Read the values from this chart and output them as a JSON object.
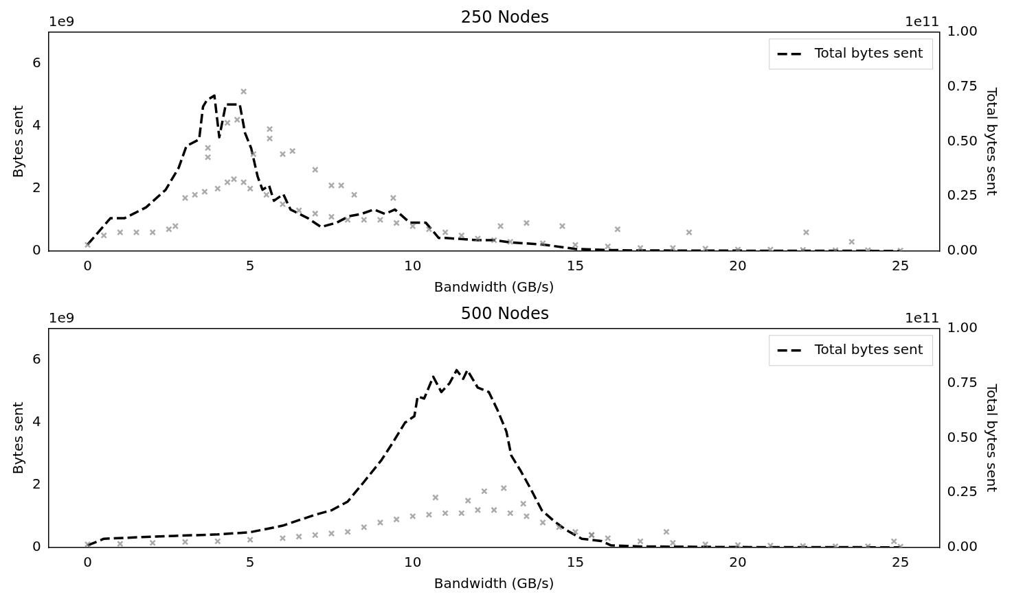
{
  "chart_data": [
    {
      "type": "scatter",
      "title": "250 Nodes",
      "xlabel": "Bandwidth (GB/s)",
      "ylabel": "Bytes sent",
      "y2label": "Total bytes sent",
      "annotations": [
        "1e9",
        "1e11"
      ],
      "xlim": [
        -1.2,
        26.2
      ],
      "xticks": [
        0,
        5,
        10,
        15,
        20,
        25
      ],
      "ylim": [
        0,
        7
      ],
      "yticks": [
        0,
        2,
        4,
        6
      ],
      "y2lim": [
        0,
        1
      ],
      "y2ticks": [
        {
          "value": 0,
          "label": "0.00"
        },
        {
          "value": 0.25,
          "label": "0.25"
        },
        {
          "value": 0.5,
          "label": "0.50"
        },
        {
          "value": 0.75,
          "label": "0.75"
        },
        {
          "value": 1,
          "label": "1.00"
        }
      ],
      "grid": false,
      "legend": "top right",
      "series": [
        {
          "color": "#808080",
          "marker": "cross",
          "x": [
            0,
            0.5,
            1,
            1.5,
            2,
            2.5,
            2.7,
            3,
            3.3,
            3.6,
            4,
            4.3,
            4.5,
            4.8,
            5,
            5.5,
            6,
            6.5,
            7,
            7.5,
            8,
            8.5,
            9,
            9.5,
            10,
            10.5,
            11,
            11.5,
            12,
            12.5,
            13,
            14,
            15,
            16,
            17,
            18,
            19,
            20,
            21,
            22,
            23,
            24,
            25,
            4.8,
            4.6,
            4.3,
            5.6,
            5.6,
            6,
            6.3,
            5.1,
            3.7,
            3.7,
            7,
            7.5,
            7.8,
            8.2,
            9.4,
            13.5,
            16.3,
            18.5,
            22.1,
            23.5,
            12.7,
            14.6
          ],
          "values": [
            0.2,
            0.5,
            0.6,
            0.6,
            0.6,
            0.7,
            0.8,
            1.7,
            1.8,
            1.9,
            2.0,
            2.2,
            2.3,
            2.2,
            2.0,
            1.8,
            1.5,
            1.3,
            1.2,
            1.1,
            1.0,
            1.0,
            1.0,
            0.9,
            0.8,
            0.7,
            0.6,
            0.5,
            0.4,
            0.35,
            0.3,
            0.25,
            0.2,
            0.15,
            0.1,
            0.1,
            0.08,
            0.05,
            0.05,
            0.04,
            0.03,
            0.03,
            0.02,
            5.1,
            4.2,
            4.1,
            3.9,
            3.6,
            3.1,
            3.2,
            3.1,
            3.3,
            3.0,
            2.6,
            2.1,
            2.1,
            1.8,
            1.7,
            0.9,
            0.7,
            0.6,
            0.6,
            0.3,
            0.8,
            0.8
          ]
        },
        {
          "type": "line",
          "axis": "y2",
          "name": "Total bytes sent",
          "color": "#000000",
          "line_style": "dashed",
          "marker": "none",
          "x": [
            0,
            0.7,
            1.13,
            1.8,
            2.4,
            2.8,
            3.04,
            3.43,
            3.55,
            3.67,
            3.9,
            4.05,
            4.25,
            4.44,
            4.68,
            4.84,
            5.03,
            5.23,
            5.38,
            5.58,
            5.73,
            6.02,
            6.24,
            6.78,
            7.18,
            7.66,
            8.05,
            8.42,
            8.8,
            9.15,
            9.45,
            9.91,
            10.4,
            10.8,
            11,
            12,
            12.5,
            13,
            14,
            15,
            16,
            17,
            20,
            25
          ],
          "values": [
            0.03,
            0.15,
            0.15,
            0.2,
            0.28,
            0.38,
            0.48,
            0.51,
            0.66,
            0.69,
            0.71,
            0.52,
            0.67,
            0.67,
            0.67,
            0.54,
            0.47,
            0.34,
            0.28,
            0.3,
            0.23,
            0.26,
            0.19,
            0.15,
            0.11,
            0.13,
            0.16,
            0.17,
            0.19,
            0.17,
            0.19,
            0.13,
            0.13,
            0.06,
            0.06,
            0.05,
            0.05,
            0.04,
            0.03,
            0.01,
            0.005,
            0.003,
            0.002,
            0.001
          ]
        }
      ]
    },
    {
      "type": "scatter",
      "title": "500 Nodes",
      "xlabel": "Bandwidth (GB/s)",
      "ylabel": "Bytes sent",
      "y2label": "Total bytes sent",
      "annotations": [
        "1e9",
        "1e11"
      ],
      "xlim": [
        -1.2,
        26.2
      ],
      "xticks": [
        0,
        5,
        10,
        15,
        20,
        25
      ],
      "ylim": [
        0,
        7
      ],
      "yticks": [
        0,
        2,
        4,
        6
      ],
      "y2lim": [
        0,
        1
      ],
      "y2ticks": [
        {
          "value": 0,
          "label": "0.00"
        },
        {
          "value": 0.25,
          "label": "0.25"
        },
        {
          "value": 0.5,
          "label": "0.50"
        },
        {
          "value": 0.75,
          "label": "0.75"
        },
        {
          "value": 1,
          "label": "1.00"
        }
      ],
      "grid": false,
      "legend": "top right",
      "series": [
        {
          "color": "#808080",
          "marker": "cross",
          "x": [
            0,
            1,
            2,
            3,
            4,
            5,
            6,
            6.5,
            7,
            7.5,
            8,
            8.5,
            9,
            9.5,
            10,
            10.5,
            11,
            11.5,
            12,
            12.5,
            13,
            13.5,
            14,
            14.5,
            15,
            15.5,
            16,
            17,
            18,
            19,
            20,
            21,
            22,
            23,
            24,
            25,
            10.7,
            12.2,
            12.8,
            13.4,
            15.5,
            17.8,
            24.8,
            11.7
          ],
          "values": [
            0.1,
            0.12,
            0.15,
            0.18,
            0.2,
            0.25,
            0.3,
            0.35,
            0.4,
            0.45,
            0.5,
            0.65,
            0.8,
            0.9,
            1.0,
            1.05,
            1.1,
            1.1,
            1.2,
            1.2,
            1.1,
            1.0,
            0.8,
            0.65,
            0.5,
            0.4,
            0.3,
            0.2,
            0.15,
            0.1,
            0.08,
            0.06,
            0.05,
            0.04,
            0.04,
            0.03,
            1.6,
            1.8,
            1.9,
            1.4,
            0.4,
            0.5,
            0.2,
            1.5
          ]
        },
        {
          "type": "line",
          "axis": "y2",
          "name": "Total bytes sent",
          "color": "#000000",
          "line_style": "dashed",
          "marker": "none",
          "x": [
            0,
            0.5,
            2,
            4,
            5,
            6,
            7,
            7.5,
            8,
            8.5,
            9.04,
            9.39,
            9.76,
            10.05,
            10.15,
            10.35,
            10.63,
            10.88,
            11.13,
            11.35,
            11.55,
            11.68,
            12,
            12.34,
            12.6,
            12.88,
            13.03,
            13.32,
            13.62,
            13.97,
            14.35,
            14.72,
            15.2,
            15.8,
            16.1,
            17,
            20,
            25
          ],
          "values": [
            0.01,
            0.04,
            0.05,
            0.06,
            0.07,
            0.1,
            0.15,
            0.17,
            0.21,
            0.3,
            0.4,
            0.48,
            0.57,
            0.6,
            0.69,
            0.68,
            0.78,
            0.71,
            0.75,
            0.81,
            0.77,
            0.81,
            0.73,
            0.71,
            0.63,
            0.53,
            0.42,
            0.35,
            0.27,
            0.17,
            0.12,
            0.08,
            0.04,
            0.03,
            0.01,
            0.005,
            0.002,
            0.001
          ]
        }
      ]
    }
  ]
}
